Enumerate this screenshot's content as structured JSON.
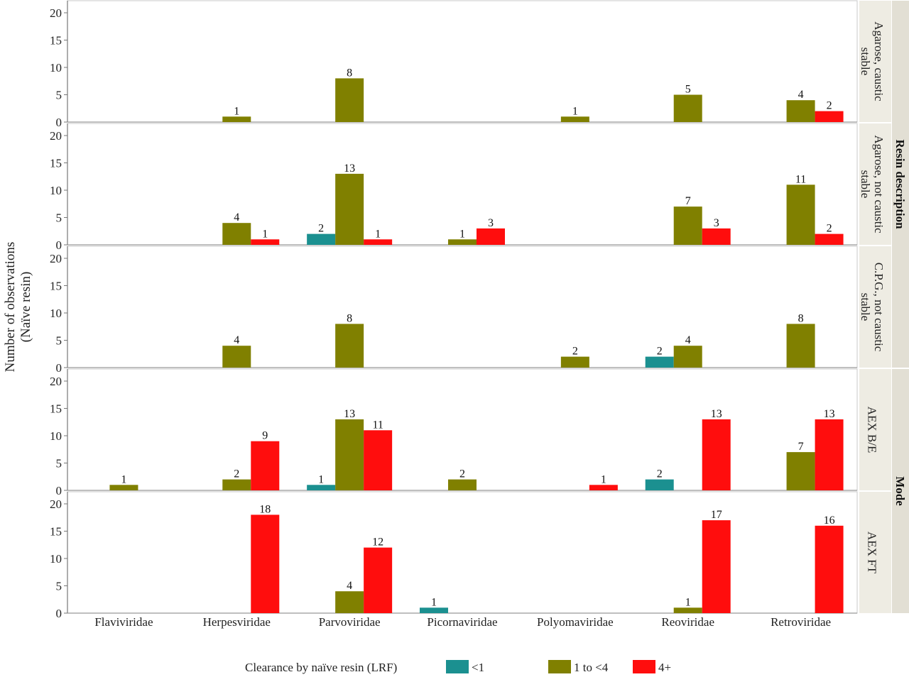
{
  "chart_data": {
    "type": "bar",
    "ylabel": [
      "Number of observations",
      "(Naïve resin)"
    ],
    "ylim": [
      0,
      20
    ],
    "yticks": [
      0,
      5,
      10,
      15,
      20
    ],
    "categories": [
      "Flaviviridae",
      "Herpesviridae",
      "Parvoviridae",
      "Picornaviridae",
      "Polyomaviridae",
      "Reoviridae",
      "Retroviridae"
    ],
    "series_names": [
      "<1",
      "1 to <4",
      "4+"
    ],
    "series_colors": [
      "#1b9090",
      "#808000",
      "#ff0d0d"
    ],
    "legend": {
      "title": "Clearance by naïve resin (LRF)",
      "placement": "bottom"
    },
    "groups": [
      {
        "label": "Resin description",
        "panel_indices": [
          0,
          1,
          2
        ]
      },
      {
        "label": "Mode",
        "panel_indices": [
          3,
          4
        ]
      }
    ],
    "panels": [
      {
        "label": [
          "Agarose, caustic",
          "stable"
        ],
        "series": [
          {
            "name": "<1",
            "values": [
              null,
              null,
              null,
              null,
              null,
              null,
              null
            ]
          },
          {
            "name": "1 to <4",
            "values": [
              null,
              1,
              8,
              null,
              1,
              5,
              4
            ]
          },
          {
            "name": "4+",
            "values": [
              null,
              null,
              null,
              null,
              null,
              null,
              2
            ]
          }
        ]
      },
      {
        "label": [
          "Agarose, not caustic",
          "stable"
        ],
        "series": [
          {
            "name": "<1",
            "values": [
              null,
              null,
              2,
              null,
              null,
              null,
              null
            ]
          },
          {
            "name": "1 to <4",
            "values": [
              null,
              4,
              13,
              1,
              null,
              7,
              11
            ]
          },
          {
            "name": "4+",
            "values": [
              null,
              1,
              1,
              3,
              null,
              3,
              2
            ]
          }
        ]
      },
      {
        "label": [
          "C.P.G., not caustic",
          "stable"
        ],
        "series": [
          {
            "name": "<1",
            "values": [
              null,
              null,
              null,
              null,
              null,
              2,
              null
            ]
          },
          {
            "name": "1 to <4",
            "values": [
              null,
              4,
              8,
              null,
              2,
              4,
              8
            ]
          },
          {
            "name": "4+",
            "values": [
              null,
              null,
              null,
              null,
              null,
              null,
              null
            ]
          }
        ]
      },
      {
        "label": [
          "AEX B/E"
        ],
        "series": [
          {
            "name": "<1",
            "values": [
              null,
              null,
              1,
              null,
              null,
              2,
              null
            ]
          },
          {
            "name": "1 to <4",
            "values": [
              1,
              2,
              13,
              2,
              null,
              null,
              7
            ]
          },
          {
            "name": "4+",
            "values": [
              null,
              9,
              11,
              null,
              1,
              13,
              13
            ]
          }
        ]
      },
      {
        "label": [
          "AEX FT"
        ],
        "series": [
          {
            "name": "<1",
            "values": [
              null,
              null,
              null,
              1,
              null,
              null,
              null
            ]
          },
          {
            "name": "1 to <4",
            "values": [
              null,
              null,
              4,
              null,
              null,
              1,
              null
            ]
          },
          {
            "name": "4+",
            "values": [
              null,
              18,
              12,
              null,
              null,
              17,
              16
            ]
          }
        ]
      }
    ]
  }
}
